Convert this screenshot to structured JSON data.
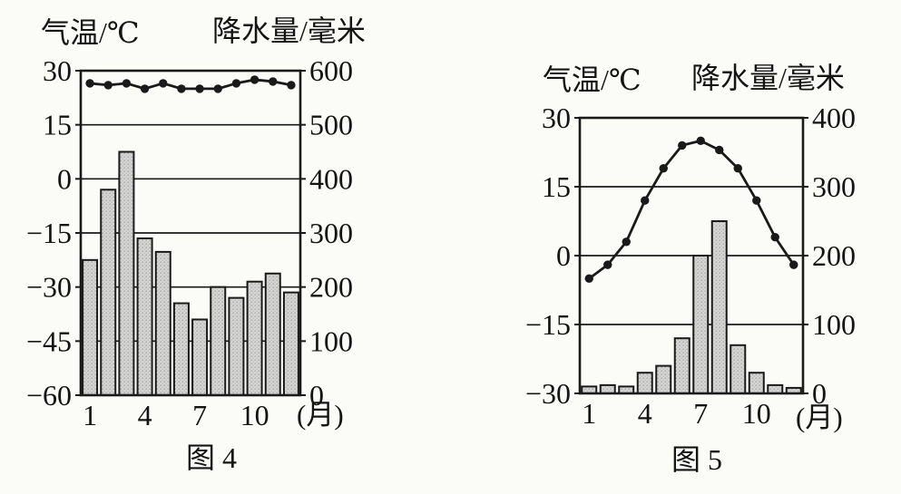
{
  "page": {
    "background_color": "#fbfbf8",
    "ink_color": "#1a1a1a"
  },
  "chart_data": [
    {
      "type": "bar+line",
      "caption": "图 4",
      "temp_axis": {
        "title": "气温/℃",
        "ticks": [
          "30",
          "15",
          "0",
          "−15",
          "−30",
          "−45",
          "−60"
        ],
        "range": [
          30,
          -60
        ]
      },
      "precip_axis": {
        "title": "降水量/毫米",
        "ticks": [
          "600",
          "500",
          "400",
          "300",
          "200",
          "100",
          "0"
        ],
        "range": [
          600,
          0
        ]
      },
      "x_axis": {
        "months": [
          1,
          2,
          3,
          4,
          5,
          6,
          7,
          8,
          9,
          10,
          11,
          12
        ],
        "tick_months": [
          1,
          4,
          7,
          10
        ],
        "tick_labels": [
          "1",
          "4",
          "7",
          "10"
        ],
        "unit_label": "(月)"
      },
      "grid": "horizontal",
      "legend": "none",
      "series": [
        {
          "name": "气温",
          "type": "line",
          "unit": "℃",
          "values": [
            26.5,
            26,
            26.5,
            25,
            26.5,
            25,
            25,
            25,
            26.5,
            27.5,
            27,
            26
          ]
        },
        {
          "name": "降水量",
          "type": "bar",
          "unit": "毫米",
          "values": [
            250,
            380,
            450,
            290,
            265,
            170,
            140,
            200,
            180,
            210,
            225,
            190
          ]
        }
      ],
      "colors": {
        "bar_fill": "#d4d4d2",
        "bar_dot": "#989896",
        "stroke": "#1a1a1a"
      }
    },
    {
      "type": "bar+line",
      "caption": "图 5",
      "temp_axis": {
        "title": "气温/℃",
        "ticks": [
          "30",
          "15",
          "0",
          "−15",
          "−30"
        ],
        "range": [
          30,
          -30
        ]
      },
      "precip_axis": {
        "title": "降水量/毫米",
        "ticks": [
          "400",
          "300",
          "200",
          "100",
          "0"
        ],
        "range": [
          400,
          0
        ]
      },
      "x_axis": {
        "months": [
          1,
          2,
          3,
          4,
          5,
          6,
          7,
          8,
          9,
          10,
          11,
          12
        ],
        "tick_months": [
          1,
          4,
          7,
          10
        ],
        "tick_labels": [
          "1",
          "4",
          "7",
          "10"
        ],
        "unit_label": "(月)"
      },
      "grid": "horizontal",
      "legend": "none",
      "series": [
        {
          "name": "气温",
          "type": "line",
          "unit": "℃",
          "values": [
            -5,
            -2,
            3,
            12,
            19,
            24,
            25,
            23,
            19,
            12,
            4,
            -2
          ]
        },
        {
          "name": "降水量",
          "type": "bar",
          "unit": "毫米",
          "values": [
            10,
            12,
            10,
            30,
            40,
            80,
            200,
            250,
            70,
            30,
            12,
            8
          ]
        }
      ],
      "colors": {
        "bar_fill": "#d4d4d2",
        "bar_dot": "#989896",
        "stroke": "#1a1a1a"
      }
    }
  ]
}
